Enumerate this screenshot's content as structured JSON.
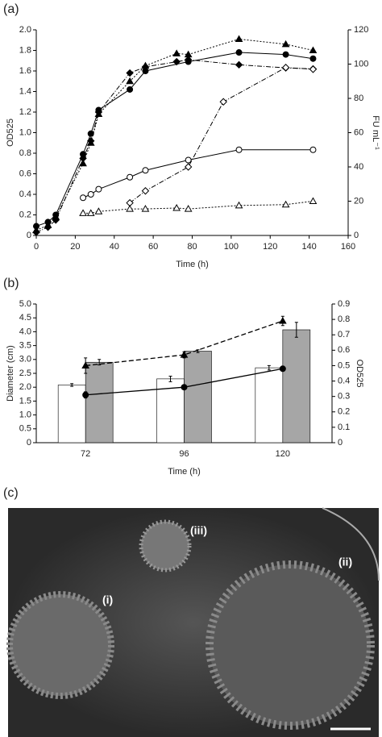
{
  "panel_labels": [
    "(a)",
    "(b)",
    "(c)"
  ],
  "photo_labels": [
    "(i)",
    "(ii)",
    "(iii)"
  ],
  "chart_data": [
    {
      "type": "line",
      "x_label": "Time (h)",
      "y_label": "OD525",
      "y2_label": "FU mL⁻¹",
      "xlim": [
        0,
        160
      ],
      "xticks": [
        0,
        20,
        40,
        60,
        80,
        100,
        120,
        140,
        160
      ],
      "ylim": [
        0,
        2
      ],
      "yticks": [
        0,
        0.2,
        0.4,
        0.6,
        0.8,
        {
          "value": 1,
          "label": "1.0"
        },
        1.2,
        1.4,
        1.6,
        1.8,
        {
          "value": 2,
          "label": "2.0"
        }
      ],
      "y2lim": [
        0,
        120
      ],
      "y2ticks": [
        0,
        20,
        40,
        60,
        80,
        100,
        120
      ],
      "series": [
        {
          "color": "#000000",
          "marker": "circle",
          "filled": true,
          "dash": "solid",
          "x": [
            0,
            6,
            10,
            24,
            28,
            32,
            48,
            56,
            78,
            104,
            128,
            142
          ],
          "values": [
            0.09,
            0.13,
            0.2,
            0.79,
            0.99,
            1.22,
            1.42,
            1.6,
            1.69,
            1.78,
            1.76,
            1.72
          ]
        },
        {
          "color": "#000000",
          "marker": "triangle",
          "filled": true,
          "dash": "dotted",
          "x": [
            0,
            6,
            10,
            24,
            28,
            32,
            48,
            56,
            72,
            78,
            104,
            128,
            142
          ],
          "values": [
            0.05,
            0.1,
            0.18,
            0.7,
            0.9,
            1.18,
            1.5,
            1.65,
            1.77,
            1.76,
            1.91,
            1.86,
            1.8
          ]
        },
        {
          "color": "#000000",
          "marker": "diamond",
          "filled": true,
          "dash": "dashdot",
          "x": [
            0,
            6,
            10,
            24,
            28,
            32,
            48,
            56,
            72,
            78,
            104,
            128,
            142
          ],
          "values": [
            0.03,
            0.08,
            0.15,
            0.75,
            0.92,
            1.2,
            1.58,
            1.64,
            1.69,
            1.71,
            1.66,
            1.63,
            1.62
          ]
        },
        {
          "color": "#000000",
          "marker": "circle",
          "filled": false,
          "dash": "solid",
          "axis": "y2",
          "x": [
            24,
            28,
            32,
            48,
            56,
            78,
            104,
            142
          ],
          "values": [
            22,
            24,
            27,
            34,
            38,
            44,
            50,
            50
          ]
        },
        {
          "color": "#000000",
          "marker": "diamond",
          "filled": false,
          "dash": "dashdot",
          "axis": "y2",
          "x": [
            48,
            56,
            78,
            96,
            128,
            142
          ],
          "values": [
            19,
            26,
            40,
            78,
            98,
            97
          ]
        },
        {
          "color": "#000000",
          "marker": "triangle",
          "filled": false,
          "dash": "dotted",
          "axis": "y2",
          "x": [
            24,
            28,
            32,
            48,
            56,
            72,
            78,
            104,
            128,
            142
          ],
          "values": [
            13,
            13,
            14,
            15.5,
            15.5,
            16,
            15.5,
            17.5,
            18,
            20
          ]
        }
      ]
    },
    {
      "type": "bar",
      "x_label": "Time (h)",
      "y_label": "Diameter (cm)",
      "y2_label": "OD525",
      "categories": [
        "72",
        "96",
        "120"
      ],
      "ylim": [
        0,
        5
      ],
      "yticks": [
        0,
        0.5,
        {
          "value": 1,
          "label": "1.0"
        },
        1.5,
        {
          "value": 2,
          "label": "2.0"
        },
        2.5,
        {
          "value": 3,
          "label": "3.0"
        },
        3.5,
        {
          "value": 4,
          "label": "4.0"
        },
        4.5,
        {
          "value": 5,
          "label": "5.0"
        }
      ],
      "y2lim": [
        0,
        0.9
      ],
      "y2ticks": [
        0,
        0.1,
        0.2,
        0.3,
        0.4,
        0.5,
        0.6,
        0.7,
        0.8,
        0.9
      ],
      "series": [
        {
          "type": "bar",
          "color": "#ffffff",
          "values": [
            2.08,
            2.3,
            2.7
          ],
          "errors": [
            0.05,
            0.1,
            0.08
          ]
        },
        {
          "type": "bar",
          "color": "#a6a6a6",
          "values": [
            2.9,
            3.3,
            4.07
          ],
          "errors": [
            0.1,
            0.05,
            0.27
          ]
        },
        {
          "type": "line",
          "axis": "y2",
          "color": "#000000",
          "marker": "triangle",
          "dash": "dashed",
          "values": [
            0.5,
            0.57,
            0.79
          ],
          "errors": [
            0.05,
            0.02,
            0.03
          ]
        },
        {
          "type": "line",
          "axis": "y2",
          "color": "#000000",
          "marker": "circle",
          "dash": "solid",
          "values": [
            0.31,
            0.36,
            0.48
          ],
          "errors": [
            0.02,
            0.01,
            0.01
          ]
        }
      ]
    }
  ]
}
